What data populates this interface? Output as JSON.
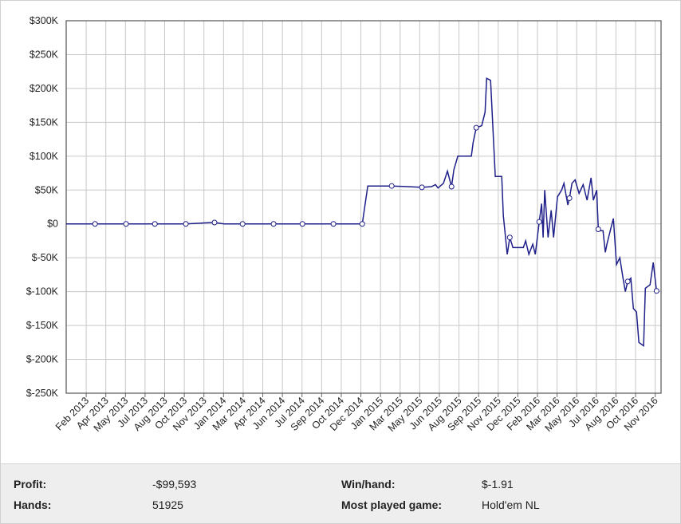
{
  "chart_data": {
    "type": "line",
    "ylim": [
      -250000,
      300000
    ],
    "yticks": [
      {
        "value": -250000,
        "label": "$-250K"
      },
      {
        "value": -200000,
        "label": "$-200K"
      },
      {
        "value": -150000,
        "label": "$-150K"
      },
      {
        "value": -100000,
        "label": "$-100K"
      },
      {
        "value": -50000,
        "label": "$-50K"
      },
      {
        "value": 0,
        "label": "$0"
      },
      {
        "value": 50000,
        "label": "$50K"
      },
      {
        "value": 100000,
        "label": "$100K"
      },
      {
        "value": 150000,
        "label": "$150K"
      },
      {
        "value": 200000,
        "label": "$200K"
      },
      {
        "value": 250000,
        "label": "$250K"
      },
      {
        "value": 300000,
        "label": "$300K"
      }
    ],
    "xlim": [
      -1.02,
      29.3
    ],
    "xticks": [
      {
        "value": 0,
        "label": "Feb 2013"
      },
      {
        "value": 1,
        "label": "Apr 2013"
      },
      {
        "value": 2,
        "label": "May 2013"
      },
      {
        "value": 3,
        "label": "Jul 2013"
      },
      {
        "value": 4,
        "label": "Aug 2013"
      },
      {
        "value": 5,
        "label": "Oct 2013"
      },
      {
        "value": 6,
        "label": "Nov 2013"
      },
      {
        "value": 7,
        "label": "Jan 2014"
      },
      {
        "value": 8,
        "label": "Mar 2014"
      },
      {
        "value": 9,
        "label": "Apr 2014"
      },
      {
        "value": 10,
        "label": "Jun 2014"
      },
      {
        "value": 11,
        "label": "Jul 2014"
      },
      {
        "value": 12,
        "label": "Sep 2014"
      },
      {
        "value": 13,
        "label": "Oct 2014"
      },
      {
        "value": 14,
        "label": "Dec 2014"
      },
      {
        "value": 15,
        "label": "Jan 2015"
      },
      {
        "value": 16,
        "label": "Mar 2015"
      },
      {
        "value": 17,
        "label": "May 2015"
      },
      {
        "value": 18,
        "label": "Jun 2015"
      },
      {
        "value": 19,
        "label": "Aug 2015"
      },
      {
        "value": 20,
        "label": "Sep 2015"
      },
      {
        "value": 21,
        "label": "Nov 2015"
      },
      {
        "value": 22,
        "label": "Dec 2015"
      },
      {
        "value": 23,
        "label": "Feb 2016"
      },
      {
        "value": 24,
        "label": "Mar 2016"
      },
      {
        "value": 25,
        "label": "May 2016"
      },
      {
        "value": 26,
        "label": "Jul 2016"
      },
      {
        "value": 27,
        "label": "Aug 2016"
      },
      {
        "value": 28,
        "label": "Oct 2016"
      },
      {
        "value": 29,
        "label": "Nov 2016"
      }
    ],
    "grid": true,
    "series": [
      {
        "color": "#1f1f8a",
        "x": [
          -1.02,
          0.45,
          2.03,
          3.5,
          5.08,
          6.42,
          6.54,
          7.03,
          7.97,
          9.55,
          11.02,
          12.6,
          14.07,
          14.35,
          15.57,
          16.38,
          17.11,
          17.6,
          17.8,
          17.93,
          18.21,
          18.41,
          18.62,
          18.74,
          18.94,
          19.63,
          19.72,
          19.88,
          20.16,
          20.33,
          20.41,
          20.61,
          20.85,
          21.18,
          21.26,
          21.46,
          21.59,
          21.75,
          22.28,
          22.4,
          22.56,
          22.76,
          22.89,
          23.09,
          23.21,
          23.29,
          23.37,
          23.54,
          23.7,
          23.82,
          24.02,
          24.23,
          24.35,
          24.55,
          24.63,
          24.76,
          24.92,
          25.12,
          25.33,
          25.53,
          25.73,
          25.85,
          26.02,
          26.1,
          26.22,
          26.34,
          26.46,
          26.54,
          26.71,
          26.87,
          27.03,
          27.2,
          27.36,
          27.48,
          27.6,
          27.76,
          27.89,
          28.05,
          28.17,
          28.41,
          28.5,
          28.74,
          28.9,
          29.07
        ],
        "values": [
          0,
          0,
          0,
          0,
          0,
          2000,
          2000,
          0,
          0,
          0,
          0,
          0,
          0,
          56000,
          56000,
          55000,
          54000,
          55000,
          58000,
          53000,
          60000,
          78000,
          55000,
          80000,
          100000,
          100000,
          120000,
          142000,
          145000,
          165000,
          215000,
          212000,
          70000,
          70000,
          12000,
          -45000,
          -20000,
          -35000,
          -35000,
          -25000,
          -45000,
          -30000,
          -45000,
          3000,
          30000,
          -20000,
          50000,
          -20000,
          20000,
          -20000,
          40000,
          50000,
          60000,
          28000,
          38000,
          60000,
          65000,
          45000,
          58000,
          35000,
          68000,
          35000,
          50000,
          -8000,
          -10000,
          -10000,
          -42000,
          -30000,
          -10000,
          8000,
          -60000,
          -50000,
          -80000,
          -100000,
          -85000,
          -80000,
          -125000,
          -130000,
          -175000,
          -180000,
          -95000,
          -90000,
          -57000,
          -99000
        ],
        "markers": [
          false,
          true,
          true,
          true,
          true,
          false,
          true,
          false,
          true,
          true,
          true,
          true,
          true,
          false,
          true,
          false,
          true,
          false,
          false,
          false,
          false,
          false,
          true,
          false,
          false,
          false,
          false,
          true,
          false,
          false,
          false,
          false,
          false,
          false,
          false,
          false,
          true,
          false,
          false,
          false,
          false,
          false,
          false,
          true,
          false,
          false,
          false,
          false,
          false,
          false,
          false,
          false,
          false,
          false,
          true,
          false,
          false,
          false,
          false,
          false,
          false,
          false,
          false,
          true,
          false,
          false,
          false,
          false,
          false,
          false,
          false,
          false,
          false,
          false,
          true,
          false,
          false,
          false,
          false,
          false,
          false,
          false,
          false,
          true
        ]
      }
    ]
  },
  "stats": [
    {
      "label": "Profit:",
      "value": "-$99,593"
    },
    {
      "label": "Win/hand:",
      "value": "$-1.91"
    },
    {
      "label": "Hands:",
      "value": "51925"
    },
    {
      "label": "Most played game:",
      "value": "Hold'em NL"
    }
  ]
}
